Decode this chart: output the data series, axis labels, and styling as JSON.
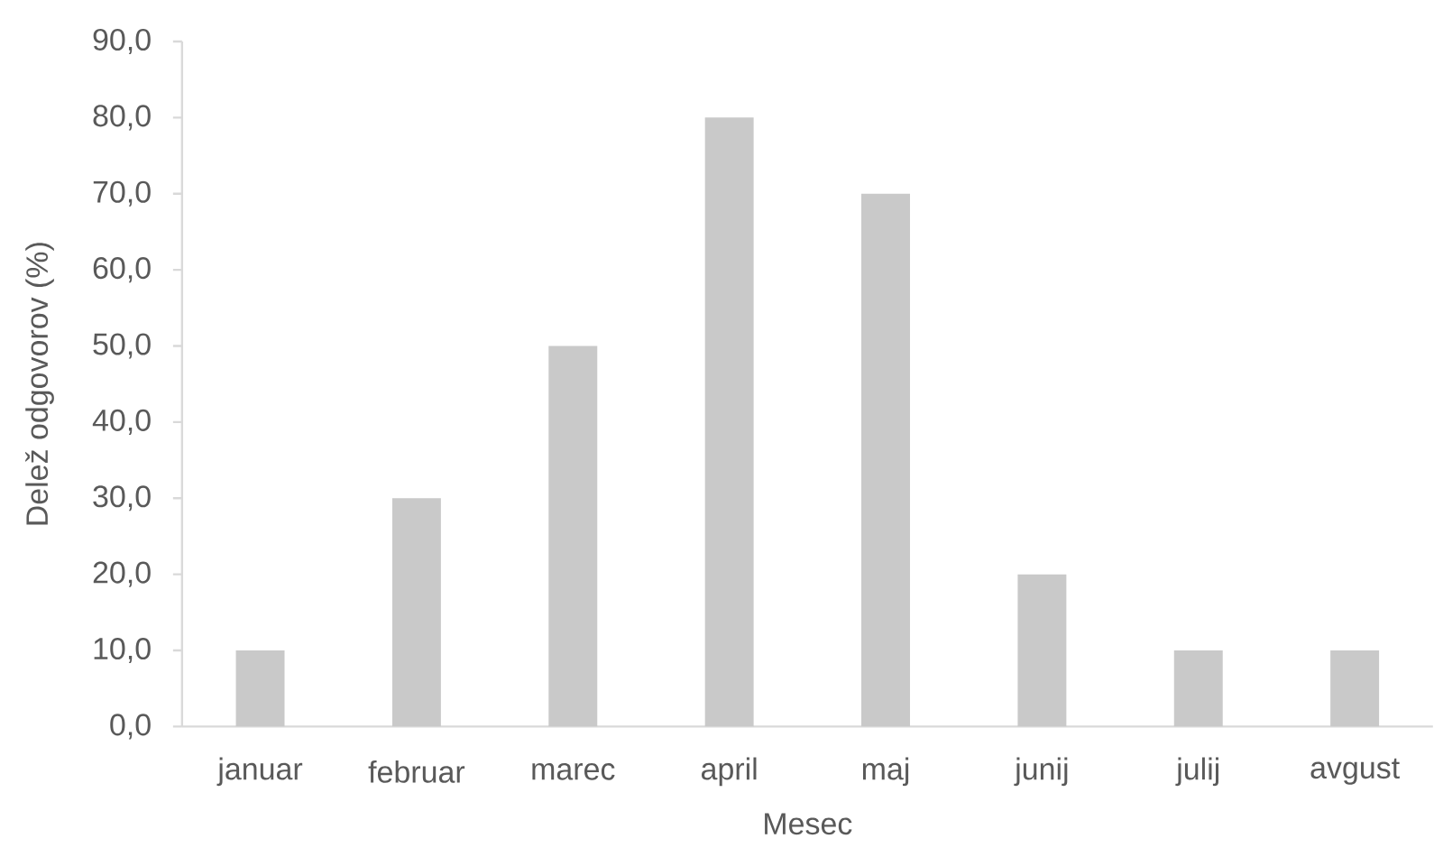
{
  "chart_data": {
    "type": "bar",
    "xlabel": "Mesec",
    "ylabel": "Delež odgovorov (%)",
    "categories": [
      "januar",
      "februar",
      "marec",
      "april",
      "maj",
      "junij",
      "julij",
      "avgust"
    ],
    "values": [
      10,
      30,
      50,
      80,
      70,
      20,
      10,
      10
    ],
    "color": "#c9c9c9",
    "ylim": [
      0,
      90
    ],
    "yticks": [
      {
        "value": 0,
        "label": "0,0"
      },
      {
        "value": 10,
        "label": "10,0"
      },
      {
        "value": 20,
        "label": "20,0"
      },
      {
        "value": 30,
        "label": "30,0"
      },
      {
        "value": 40,
        "label": "40,0"
      },
      {
        "value": 50,
        "label": "50,0"
      },
      {
        "value": 60,
        "label": "60,0"
      },
      {
        "value": 70,
        "label": "70,0"
      },
      {
        "value": 80,
        "label": "80,0"
      },
      {
        "value": 90,
        "label": "90,0"
      }
    ]
  }
}
